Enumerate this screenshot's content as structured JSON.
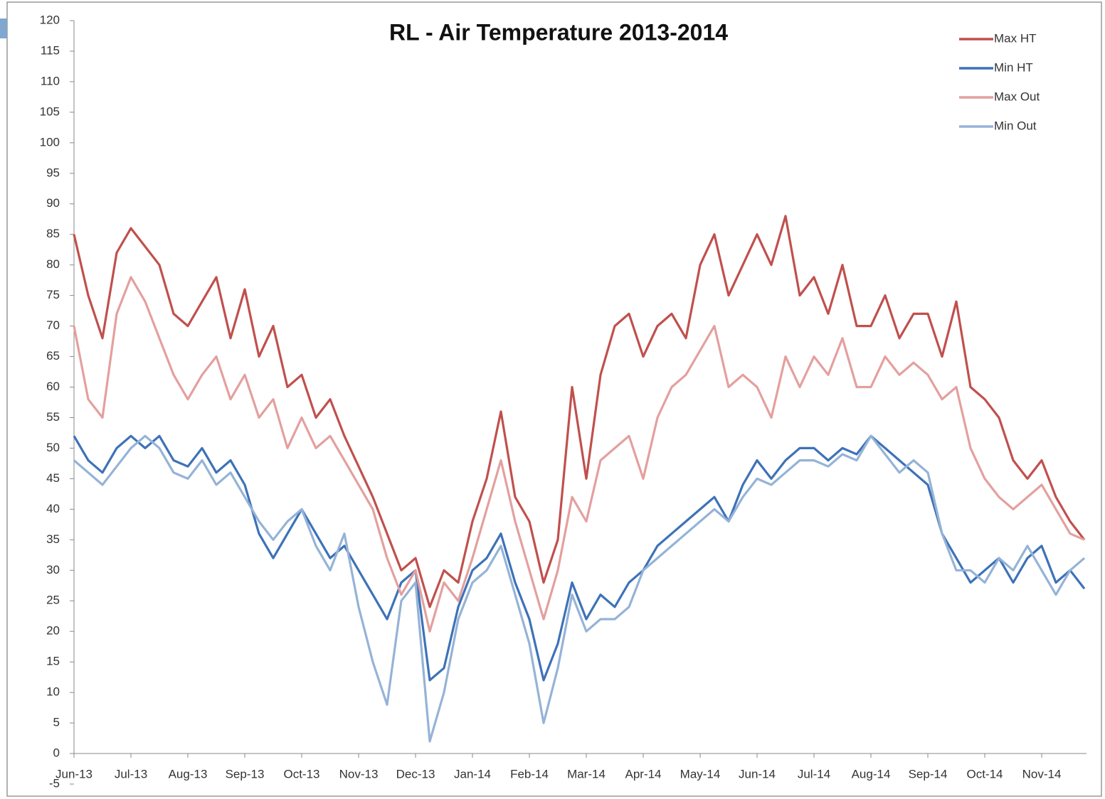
{
  "chart_data": {
    "type": "line",
    "title": "RL - Air Temperature 2013-2014",
    "categories": [
      "Jun-13",
      null,
      null,
      null,
      "Jul-13",
      null,
      null,
      null,
      "Aug-13",
      null,
      null,
      null,
      "Sep-13",
      null,
      null,
      null,
      "Oct-13",
      null,
      null,
      null,
      "Nov-13",
      null,
      null,
      null,
      "Dec-13",
      null,
      null,
      null,
      "Jan-14",
      null,
      null,
      null,
      "Feb-14",
      null,
      null,
      null,
      "Mar-14",
      null,
      null,
      null,
      "Apr-14",
      null,
      null,
      null,
      "May-14",
      null,
      null,
      null,
      "Jun-14",
      null,
      null,
      null,
      "Jul-14",
      null,
      null,
      null,
      "Aug-14",
      null,
      null,
      null,
      "Sep-14",
      null,
      null,
      null,
      "Oct-14",
      null,
      null,
      null,
      "Nov-14",
      null,
      null,
      null
    ],
    "ylim": [
      -5,
      120
    ],
    "yticks": [
      -5,
      0,
      5,
      10,
      15,
      20,
      25,
      30,
      35,
      40,
      45,
      50,
      55,
      60,
      65,
      70,
      75,
      80,
      85,
      90,
      95,
      100,
      105,
      110,
      115,
      120
    ],
    "legend": "top-right",
    "series": [
      {
        "name": "Max HT",
        "color": "#c0504d",
        "values": [
          85,
          75,
          68,
          82,
          86,
          83,
          80,
          72,
          70,
          74,
          78,
          68,
          76,
          65,
          70,
          60,
          62,
          55,
          58,
          52,
          47,
          42,
          36,
          30,
          32,
          24,
          30,
          28,
          38,
          45,
          56,
          42,
          38,
          28,
          35,
          60,
          45,
          62,
          70,
          72,
          65,
          70,
          72,
          68,
          80,
          85,
          75,
          80,
          85,
          80,
          88,
          75,
          78,
          72,
          80,
          70,
          70,
          75,
          68,
          72,
          72,
          65,
          74,
          60,
          58,
          55,
          48,
          45,
          48,
          42,
          38,
          35
        ]
      },
      {
        "name": "Min HT",
        "color": "#3d72b8",
        "values": [
          52,
          48,
          46,
          50,
          52,
          50,
          52,
          48,
          47,
          50,
          46,
          48,
          44,
          36,
          32,
          36,
          40,
          36,
          32,
          34,
          30,
          26,
          22,
          28,
          30,
          12,
          14,
          24,
          30,
          32,
          36,
          28,
          22,
          12,
          18,
          28,
          22,
          26,
          24,
          28,
          30,
          34,
          36,
          38,
          40,
          42,
          38,
          44,
          48,
          45,
          48,
          50,
          50,
          48,
          50,
          49,
          52,
          50,
          48,
          46,
          44,
          36,
          32,
          28,
          30,
          32,
          28,
          32,
          34,
          28,
          30,
          27
        ]
      },
      {
        "name": "Max Out",
        "color": "#e3a09e",
        "values": [
          70,
          58,
          55,
          72,
          78,
          74,
          68,
          62,
          58,
          62,
          65,
          58,
          62,
          55,
          58,
          50,
          55,
          50,
          52,
          48,
          44,
          40,
          32,
          26,
          30,
          20,
          28,
          25,
          32,
          40,
          48,
          38,
          30,
          22,
          30,
          42,
          38,
          48,
          50,
          52,
          45,
          55,
          60,
          62,
          66,
          70,
          60,
          62,
          60,
          55,
          65,
          60,
          65,
          62,
          68,
          60,
          60,
          65,
          62,
          64,
          62,
          58,
          60,
          50,
          45,
          42,
          40,
          42,
          44,
          40,
          36,
          35
        ]
      },
      {
        "name": "Min Out",
        "color": "#95b3d7",
        "values": [
          48,
          46,
          44,
          47,
          50,
          52,
          50,
          46,
          45,
          48,
          44,
          46,
          42,
          38,
          35,
          38,
          40,
          34,
          30,
          36,
          24,
          15,
          8,
          25,
          28,
          2,
          10,
          22,
          28,
          30,
          34,
          26,
          18,
          5,
          14,
          26,
          20,
          22,
          22,
          24,
          30,
          32,
          34,
          36,
          38,
          40,
          38,
          42,
          45,
          44,
          46,
          48,
          48,
          47,
          49,
          48,
          52,
          49,
          46,
          48,
          46,
          36,
          30,
          30,
          28,
          32,
          30,
          34,
          30,
          26,
          30,
          32
        ]
      }
    ]
  }
}
